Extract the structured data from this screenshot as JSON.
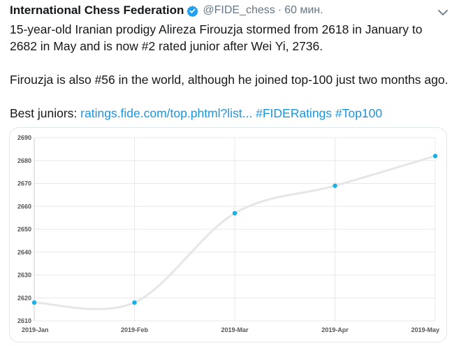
{
  "tweet": {
    "author_name": "International Chess Federation",
    "handle": "@FIDE_chess",
    "separator": "·",
    "time": "60 мин.",
    "line1": "15-year-old Iranian prodigy Alireza Firouzja stormed from 2618 in January to",
    "line2": "2682 in May and is now #2 rated junior after Wei Yi, 2736.",
    "line3": "Firouzja is also #56 in the world, although he joined top-100 just two months ago.",
    "line4_prefix": "Best juniors: ",
    "link": "ratings.fide.com/top.phtml?list...",
    "hashtag1": "#FIDERatings",
    "hashtag2": "#Top100"
  },
  "icons": {
    "verified": "verified-badge-icon",
    "menu": "chevron-down-icon"
  },
  "colors": {
    "link": "#1b95e0",
    "verified": "#1da1f2",
    "point": "#1ab0e8",
    "line": "#e6e6e6",
    "grid": "#e8e8e8"
  },
  "chart_data": {
    "type": "line",
    "categories": [
      "2019-Jan",
      "2019-Feb",
      "2019-Mar",
      "2019-Apr",
      "2019-May"
    ],
    "series": [
      {
        "values": [
          2618,
          2618,
          2657,
          2669,
          2682
        ]
      }
    ],
    "ylim": [
      2610,
      2690
    ],
    "yticks": [
      2610,
      2620,
      2630,
      2640,
      2650,
      2660,
      2670,
      2680,
      2690
    ],
    "grid": true,
    "smooth": true
  }
}
